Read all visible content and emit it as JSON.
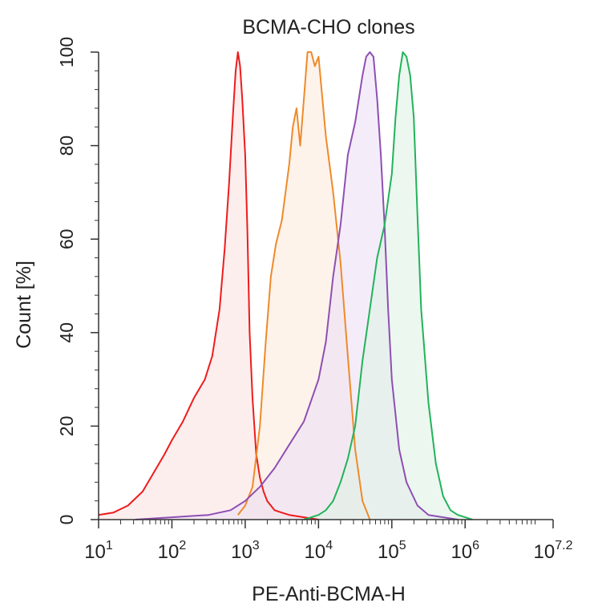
{
  "chart_data": {
    "type": "area",
    "title": "BCMA-CHO clones",
    "xlabel": "PE-Anti-BCMA-H",
    "ylabel": "Count [%]",
    "x_scale": "log10",
    "xlim": [
      1,
      7.2
    ],
    "ylim": [
      0,
      100
    ],
    "x_ticks": [
      {
        "base": "10",
        "exp": "1",
        "value": 1
      },
      {
        "base": "10",
        "exp": "2",
        "value": 2
      },
      {
        "base": "10",
        "exp": "3",
        "value": 3
      },
      {
        "base": "10",
        "exp": "4",
        "value": 4
      },
      {
        "base": "10",
        "exp": "5",
        "value": 5
      },
      {
        "base": "10",
        "exp": "6",
        "value": 6
      },
      {
        "base": "10",
        "exp": "7.2",
        "value": 7.2
      }
    ],
    "y_ticks": [
      {
        "label": "0",
        "value": 0
      },
      {
        "label": "20",
        "value": 20
      },
      {
        "label": "40",
        "value": 40
      },
      {
        "label": "60",
        "value": 60
      },
      {
        "label": "80",
        "value": 80
      },
      {
        "label": "100",
        "value": 100
      }
    ],
    "grid": false,
    "legend": "none",
    "series": [
      {
        "color": "#ee1c1c",
        "fill": "#fbe3e3",
        "x": [
          1.0,
          1.2,
          1.4,
          1.6,
          1.75,
          1.9,
          2.0,
          2.15,
          2.3,
          2.45,
          2.55,
          2.65,
          2.72,
          2.78,
          2.83,
          2.87,
          2.9,
          2.93,
          2.96,
          3.0,
          3.03,
          3.06,
          3.1,
          3.15,
          3.2,
          3.25,
          3.3,
          3.4,
          3.5,
          3.6,
          3.8,
          4.0
        ],
        "y": [
          1,
          1.5,
          3,
          6,
          10,
          14,
          17,
          21,
          26,
          30,
          35,
          45,
          58,
          72,
          86,
          96,
          100,
          97,
          90,
          78,
          62,
          40,
          26,
          14,
          9,
          6,
          4,
          2,
          1.5,
          1,
          0.5,
          0
        ]
      },
      {
        "color": "#ef8a2a",
        "fill": "#fcebde",
        "x": [
          2.9,
          3.0,
          3.1,
          3.2,
          3.28,
          3.35,
          3.42,
          3.5,
          3.55,
          3.6,
          3.65,
          3.7,
          3.75,
          3.8,
          3.85,
          3.9,
          3.95,
          4.0,
          4.1,
          4.2,
          4.3,
          4.4,
          4.5,
          4.6,
          4.7
        ],
        "y": [
          1,
          3,
          7,
          20,
          38,
          52,
          59,
          64,
          70,
          76,
          84,
          88,
          80,
          90,
          100,
          100,
          97,
          99,
          82,
          70,
          55,
          35,
          15,
          4,
          0
        ]
      },
      {
        "color": "#8e4fb3",
        "fill": "#ece1f5",
        "x": [
          1.5,
          2.0,
          2.5,
          2.8,
          3.0,
          3.2,
          3.4,
          3.6,
          3.8,
          4.0,
          4.1,
          4.2,
          4.3,
          4.4,
          4.5,
          4.6,
          4.65,
          4.7,
          4.75,
          4.8,
          4.85,
          4.9,
          4.95,
          5.0,
          5.1,
          5.2,
          5.35,
          5.5,
          5.7,
          5.9
        ],
        "y": [
          0,
          0.5,
          1,
          2,
          4,
          7,
          11,
          16,
          21,
          30,
          38,
          52,
          63,
          78,
          85,
          95,
          99,
          100,
          99,
          90,
          78,
          63,
          45,
          30,
          15,
          8,
          3,
          1,
          0.5,
          0
        ]
      },
      {
        "color": "#22b35a",
        "fill": "#dff2e6",
        "x": [
          3.8,
          4.0,
          4.1,
          4.2,
          4.3,
          4.4,
          4.5,
          4.6,
          4.7,
          4.8,
          4.9,
          5.0,
          5.05,
          5.1,
          5.15,
          5.2,
          5.25,
          5.3,
          5.35,
          5.4,
          5.5,
          5.6,
          5.7,
          5.8,
          5.9,
          6.0,
          6.1
        ],
        "y": [
          0,
          1,
          2,
          4,
          8,
          13,
          20,
          34,
          45,
          56,
          63,
          74,
          86,
          95,
          100,
          99,
          95,
          86,
          65,
          45,
          25,
          12,
          5,
          2,
          1,
          0.5,
          0
        ]
      }
    ]
  }
}
